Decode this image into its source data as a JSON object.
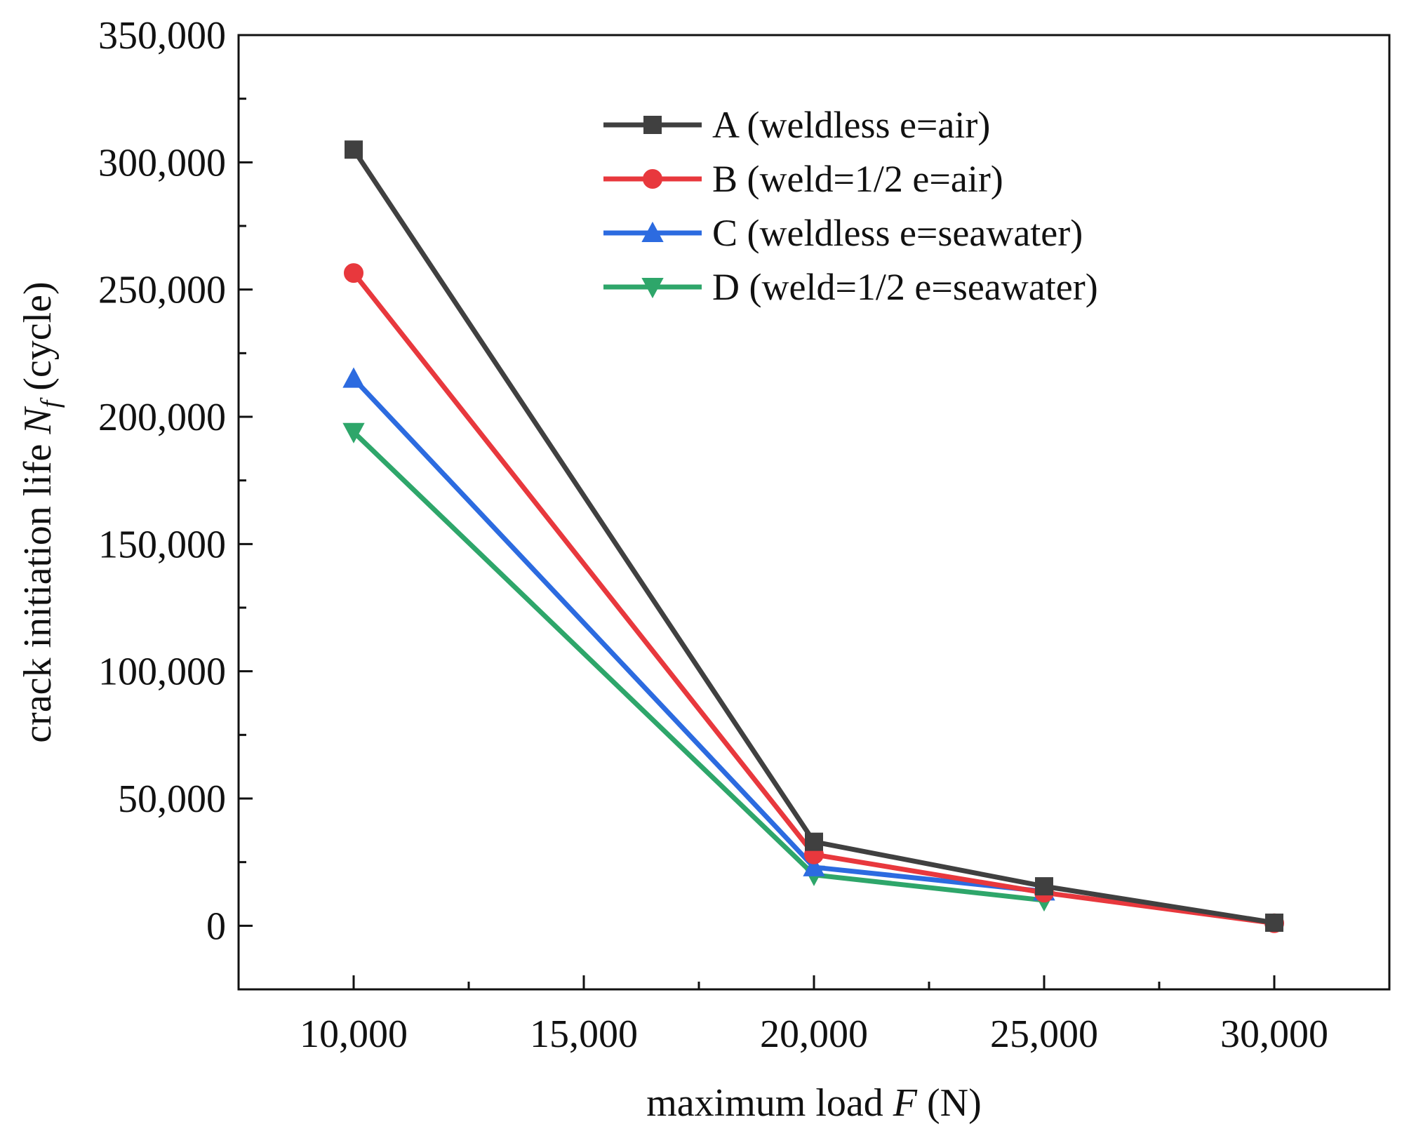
{
  "chart_data": {
    "type": "line",
    "title": "",
    "xlabel": {
      "prefix": "maximum load ",
      "var": "F",
      "suffix": " (N)"
    },
    "ylabel": {
      "prefix": "crack initiation life ",
      "var": "N",
      "sub": "f",
      "suffix": " (cycle)"
    },
    "x": [
      10000,
      20000,
      25000,
      30000
    ],
    "xlim": [
      7500,
      32500
    ],
    "ylim": [
      -25000,
      350000
    ],
    "xticks": [
      10000,
      15000,
      20000,
      25000,
      30000
    ],
    "xtick_labels": [
      "10,000",
      "15,000",
      "20,000",
      "25,000",
      "30,000"
    ],
    "yticks": [
      0,
      50000,
      100000,
      150000,
      200000,
      250000,
      300000,
      350000
    ],
    "ytick_labels": [
      "0",
      "50,000",
      "100,000",
      "150,000",
      "200,000",
      "250,000",
      "300,000",
      "350,000"
    ],
    "legend_position": "top-right",
    "series": [
      {
        "name": "A (weldless e=air)",
        "marker": "square",
        "color": "#404040",
        "values": [
          305000,
          33000,
          15500,
          1200
        ]
      },
      {
        "name": "B (weld=1/2 e=air)",
        "marker": "circle",
        "color": "#e8383d",
        "values": [
          256500,
          28000,
          13000,
          1000
        ]
      },
      {
        "name": "C (weldless e=seawater)",
        "marker": "triangle-up",
        "color": "#2c6be0",
        "values": [
          215000,
          23000,
          13500,
          null
        ]
      },
      {
        "name": "D (weld=1/2 e=seawater)",
        "marker": "triangle-down",
        "color": "#2ea66a",
        "values": [
          194000,
          20000,
          10000,
          null
        ]
      }
    ]
  }
}
